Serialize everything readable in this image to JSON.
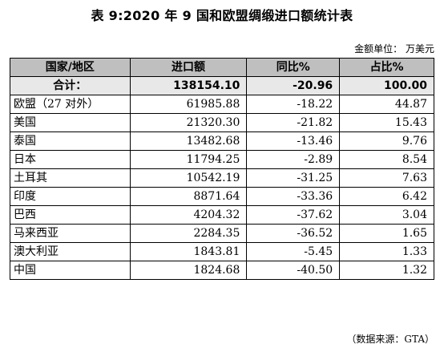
{
  "title": "表 9:2020 年 9 国和欧盟绸缎进口额统计表",
  "unit": "金额单位： 万美元",
  "headers": [
    "国家/地区",
    "进口额",
    "同比%",
    "占比%"
  ],
  "total": {
    "name": "合计：",
    "amount": "138154.10",
    "yoy": "-20.96",
    "share": "100.00"
  },
  "rows": [
    {
      "name": "欧盟（27 对外）",
      "amount": "61985.88",
      "yoy": "-18.22",
      "share": "44.87"
    },
    {
      "name": "美国",
      "amount": "21320.30",
      "yoy": "-21.82",
      "share": "15.43"
    },
    {
      "name": "泰国",
      "amount": "13482.68",
      "yoy": "-13.46",
      "share": "9.76"
    },
    {
      "name": "日本",
      "amount": "11794.25",
      "yoy": "-2.89",
      "share": "8.54"
    },
    {
      "name": "土耳其",
      "amount": "10542.19",
      "yoy": "-31.25",
      "share": "7.63"
    },
    {
      "name": "印度",
      "amount": "8871.64",
      "yoy": "-33.36",
      "share": "6.42"
    },
    {
      "name": "巴西",
      "amount": "4204.32",
      "yoy": "-37.62",
      "share": "3.04"
    },
    {
      "name": "马来西亚",
      "amount": "2284.35",
      "yoy": "-36.52",
      "share": "1.65"
    },
    {
      "name": "澳大利亚",
      "amount": "1843.81",
      "yoy": "-5.45",
      "share": "1.33"
    },
    {
      "name": "中国",
      "amount": "1824.68",
      "yoy": "-40.50",
      "share": "1.32"
    }
  ],
  "source": "（数据来源：GTA）"
}
